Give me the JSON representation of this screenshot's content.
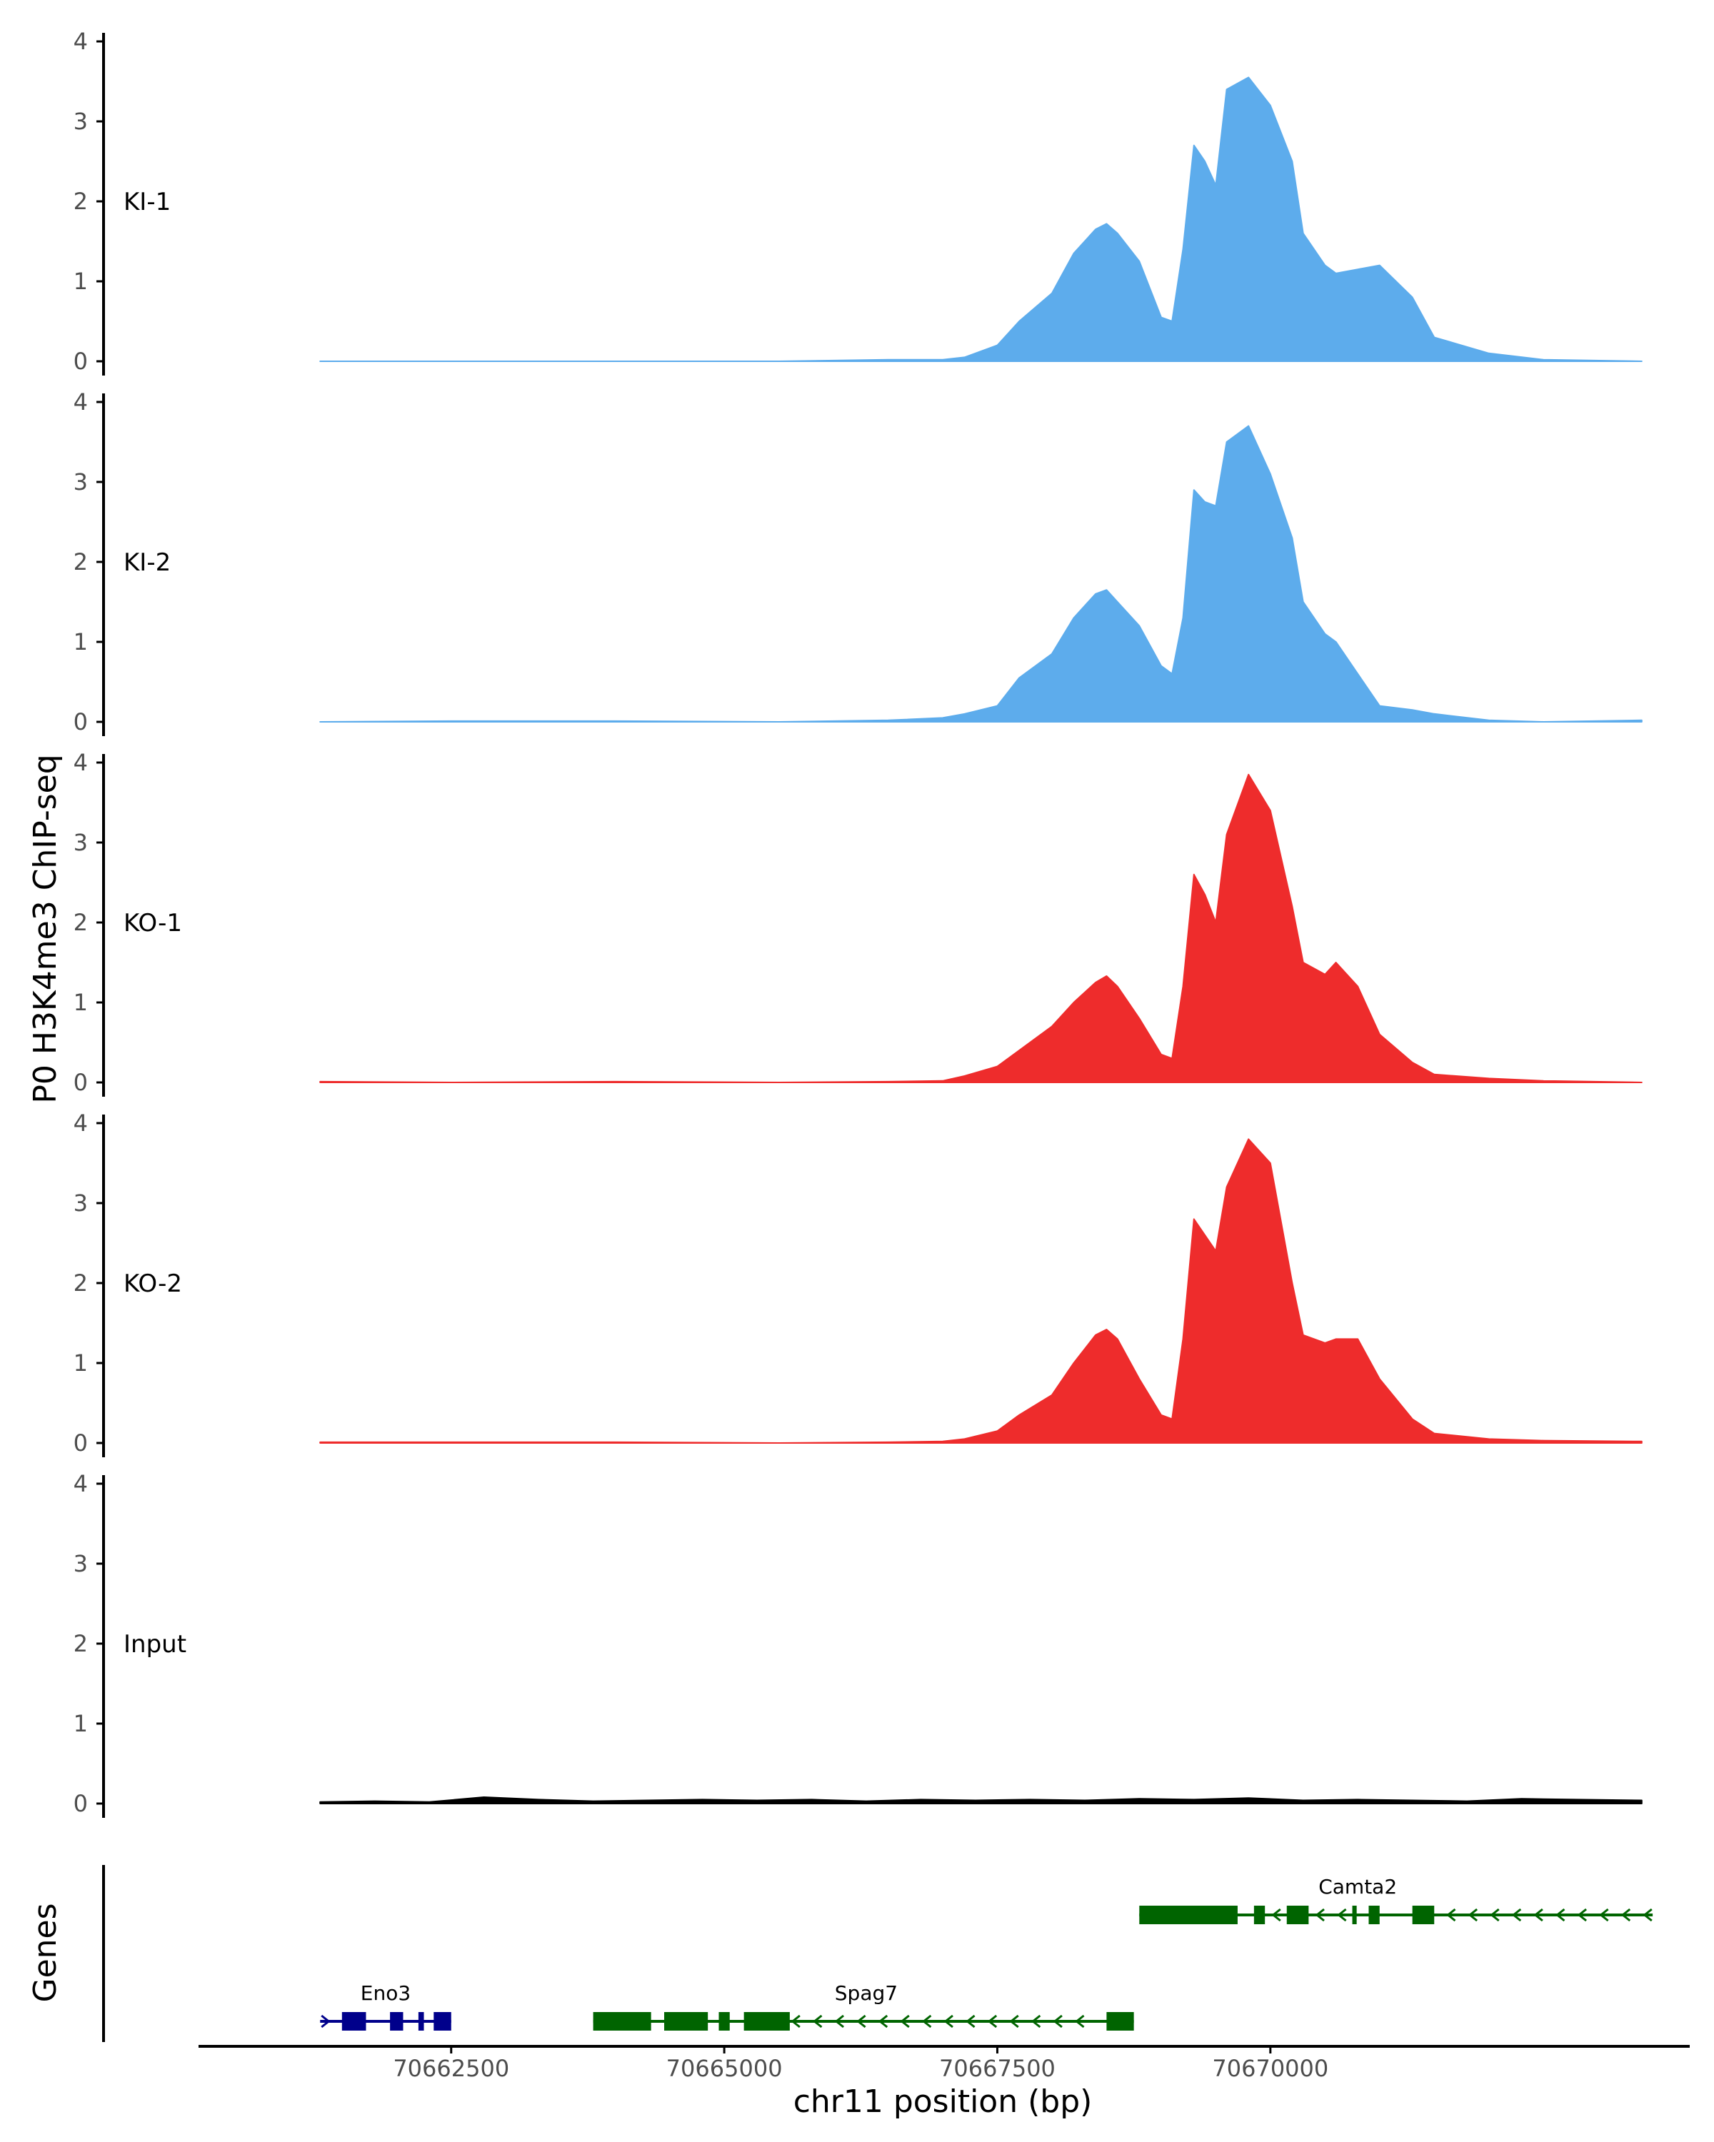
{
  "chart_data": {
    "type": "area",
    "ylabel": "P0 H3K4me3 ChIP-seq",
    "xlabel": "chr11 position (bp)",
    "genes_label": "Genes",
    "xlim": [
      70660200,
      70673800
    ],
    "ylim": [
      0,
      4
    ],
    "yticks": [
      "0",
      "1",
      "2",
      "3",
      "4"
    ],
    "xticks": [
      70662500,
      70665000,
      70667500,
      70670000
    ],
    "xtick_labels": [
      "70662500",
      "70665000",
      "70667500",
      "70670000"
    ],
    "region": [
      70661300,
      70673400
    ],
    "colors": {
      "KI": "#5DACEC",
      "KO": "#EE2C2C",
      "Input": "#000000",
      "gene_plus": "#00008B",
      "gene_minus": "#006400"
    },
    "series": [
      {
        "name": "KI-1",
        "color": "#5DACEC",
        "x": [
          70661300,
          70662500,
          70664000,
          70665500,
          70666500,
          70667000,
          70667200,
          70667500,
          70667700,
          70668000,
          70668200,
          70668400,
          70668500,
          70668600,
          70668800,
          70669000,
          70669100,
          70669200,
          70669300,
          70669400,
          70669500,
          70669600,
          70669800,
          70670000,
          70670200,
          70670300,
          70670500,
          70670600,
          70670800,
          70671000,
          70671300,
          70671500,
          70672000,
          70672500,
          70673400
        ],
        "values": [
          0,
          0,
          0,
          0,
          0.02,
          0.02,
          0.05,
          0.2,
          0.5,
          0.85,
          1.35,
          1.65,
          1.72,
          1.6,
          1.25,
          0.55,
          0.5,
          1.4,
          2.7,
          2.5,
          2.2,
          3.4,
          3.55,
          3.2,
          2.5,
          1.6,
          1.2,
          1.1,
          1.15,
          1.2,
          0.8,
          0.3,
          0.1,
          0.02,
          0
        ]
      },
      {
        "name": "KI-2",
        "color": "#5DACEC",
        "x": [
          70661300,
          70662500,
          70664000,
          70665500,
          70666500,
          70667000,
          70667200,
          70667500,
          70667700,
          70668000,
          70668200,
          70668400,
          70668500,
          70668600,
          70668800,
          70669000,
          70669100,
          70669200,
          70669300,
          70669400,
          70669500,
          70669600,
          70669800,
          70670000,
          70670200,
          70670300,
          70670500,
          70670600,
          70670800,
          70671000,
          70671300,
          70671500,
          70672000,
          70672500,
          70673400
        ],
        "values": [
          0,
          0.01,
          0.01,
          0,
          0.02,
          0.05,
          0.1,
          0.2,
          0.55,
          0.85,
          1.3,
          1.6,
          1.65,
          1.5,
          1.2,
          0.7,
          0.6,
          1.3,
          2.9,
          2.75,
          2.7,
          3.5,
          3.7,
          3.1,
          2.3,
          1.5,
          1.1,
          1.0,
          0.6,
          0.2,
          0.15,
          0.1,
          0.02,
          0,
          0.02
        ]
      },
      {
        "name": "KO-1",
        "color": "#EE2C2C",
        "x": [
          70661300,
          70662500,
          70664000,
          70665500,
          70666500,
          70667000,
          70667200,
          70667500,
          70667700,
          70668000,
          70668200,
          70668400,
          70668500,
          70668600,
          70668800,
          70669000,
          70669100,
          70669200,
          70669300,
          70669400,
          70669500,
          70669600,
          70669800,
          70670000,
          70670200,
          70670300,
          70670500,
          70670600,
          70670800,
          70671000,
          70671300,
          70671500,
          70672000,
          70672500,
          70673400
        ],
        "values": [
          0.01,
          0,
          0.01,
          0,
          0.01,
          0.02,
          0.08,
          0.2,
          0.4,
          0.7,
          1.0,
          1.25,
          1.33,
          1.2,
          0.8,
          0.35,
          0.3,
          1.2,
          2.6,
          2.35,
          2.0,
          3.1,
          3.85,
          3.4,
          2.2,
          1.5,
          1.35,
          1.5,
          1.2,
          0.6,
          0.25,
          0.1,
          0.05,
          0.02,
          0
        ]
      },
      {
        "name": "KO-2",
        "color": "#EE2C2C",
        "x": [
          70661300,
          70662500,
          70664000,
          70665500,
          70666500,
          70667000,
          70667200,
          70667500,
          70667700,
          70668000,
          70668200,
          70668400,
          70668500,
          70668600,
          70668800,
          70669000,
          70669100,
          70669200,
          70669300,
          70669400,
          70669500,
          70669600,
          70669800,
          70670000,
          70670200,
          70670300,
          70670500,
          70670600,
          70670800,
          70671000,
          70671300,
          70671500,
          70672000,
          70672500,
          70673400
        ],
        "values": [
          0.01,
          0.01,
          0.01,
          0,
          0.01,
          0.02,
          0.05,
          0.15,
          0.35,
          0.6,
          1.0,
          1.35,
          1.42,
          1.3,
          0.8,
          0.35,
          0.3,
          1.3,
          2.8,
          2.6,
          2.4,
          3.2,
          3.8,
          3.5,
          2.0,
          1.35,
          1.25,
          1.3,
          1.3,
          0.8,
          0.3,
          0.12,
          0.05,
          0.03,
          0.02
        ]
      },
      {
        "name": "Input",
        "color": "#000000",
        "x": [
          70661300,
          70661800,
          70662300,
          70662800,
          70663300,
          70663800,
          70664300,
          70664800,
          70665300,
          70665800,
          70666300,
          70666800,
          70667300,
          70667800,
          70668300,
          70668800,
          70669300,
          70669800,
          70670300,
          70670800,
          70671300,
          70671800,
          70672300,
          70672800,
          70673400
        ],
        "values": [
          0.02,
          0.03,
          0.02,
          0.08,
          0.05,
          0.03,
          0.04,
          0.05,
          0.04,
          0.05,
          0.03,
          0.05,
          0.04,
          0.05,
          0.04,
          0.06,
          0.05,
          0.07,
          0.04,
          0.05,
          0.04,
          0.03,
          0.06,
          0.05,
          0.04
        ]
      }
    ],
    "genes": [
      {
        "name": "Eno3",
        "strand": "+",
        "row": 1,
        "start": 70661300,
        "end": 70662500,
        "label_pos": 70661900,
        "exons": [
          [
            70661500,
            70661720
          ],
          [
            70661940,
            70662060
          ],
          [
            70662200,
            70662250
          ],
          [
            70662340,
            70662500
          ]
        ]
      },
      {
        "name": "Spag7",
        "strand": "-",
        "row": 1,
        "start": 70663800,
        "end": 70668750,
        "label_pos": 70666300,
        "exons": [
          [
            70663800,
            70664330
          ],
          [
            70664450,
            70664850
          ],
          [
            70664950,
            70665050
          ],
          [
            70665180,
            70665600
          ],
          [
            70668500,
            70668750
          ]
        ]
      },
      {
        "name": "Camta2",
        "strand": "-",
        "row": 0,
        "start": 70668800,
        "end": 70673500,
        "label_pos": 70670800,
        "exons": [
          [
            70668800,
            70669700
          ],
          [
            70669850,
            70669950
          ],
          [
            70670150,
            70670350
          ],
          [
            70670750,
            70670790
          ],
          [
            70670900,
            70671000
          ],
          [
            70671300,
            70671500
          ]
        ]
      }
    ]
  }
}
